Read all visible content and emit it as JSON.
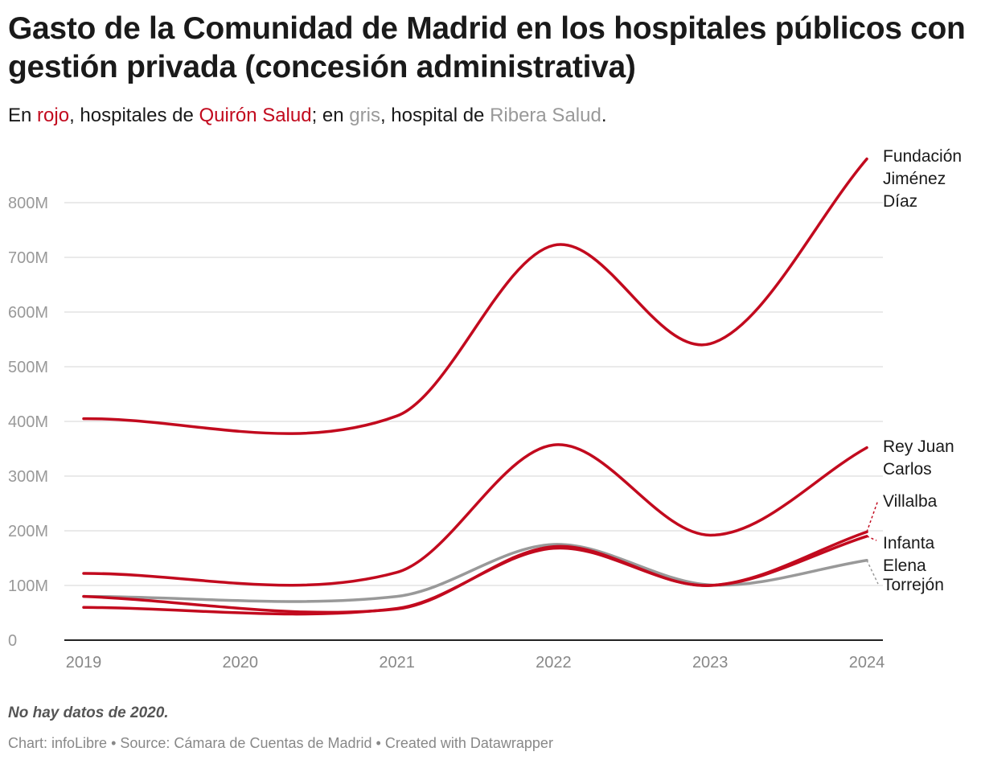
{
  "title": "Gasto de la Comunidad de Madrid en los hospitales públicos con gestión privada (concesión administrativa)",
  "subtitle": {
    "p1": "En ",
    "red_word": "rojo",
    "p2": ", hospitales de ",
    "red_brand": "Quirón Salud",
    "p3": "; en ",
    "gray_word": "gris",
    "p4": ", hospital de ",
    "gray_brand": "Ribera Salud",
    "p5": "."
  },
  "note": "No hay datos de 2020.",
  "footer": "Chart: infoLibre • Source: Cámara de Cuentas de Madrid • Created with Datawrapper",
  "colors": {
    "quiron": "#c20a1e",
    "ribera": "#999999"
  },
  "chart_data": {
    "type": "line",
    "x": [
      2019,
      2021,
      2022,
      2023,
      2024
    ],
    "xticks": [
      "2019",
      "2020",
      "2021",
      "2022",
      "2023",
      "2024"
    ],
    "yticks": [
      "0",
      "100M",
      "200M",
      "300M",
      "400M",
      "500M",
      "600M",
      "700M",
      "800M"
    ],
    "ylim": [
      0,
      880000000
    ],
    "grid": true,
    "series": [
      {
        "name": "Fundación Jiménez Díaz",
        "group": "quiron",
        "values": [
          405000000,
          410000000,
          722000000,
          542000000,
          880000000
        ]
      },
      {
        "name": "Rey Juan Carlos",
        "group": "quiron",
        "values": [
          122000000,
          124000000,
          357000000,
          192000000,
          352000000
        ]
      },
      {
        "name": "Villalba",
        "group": "quiron",
        "values": [
          80000000,
          57000000,
          171000000,
          100000000,
          198000000
        ]
      },
      {
        "name": "Infanta Elena",
        "group": "quiron",
        "values": [
          60000000,
          58000000,
          168000000,
          100000000,
          190000000
        ]
      },
      {
        "name": "Torrejón",
        "group": "ribera",
        "values": [
          80000000,
          80000000,
          175000000,
          101000000,
          146000000
        ]
      }
    ]
  }
}
